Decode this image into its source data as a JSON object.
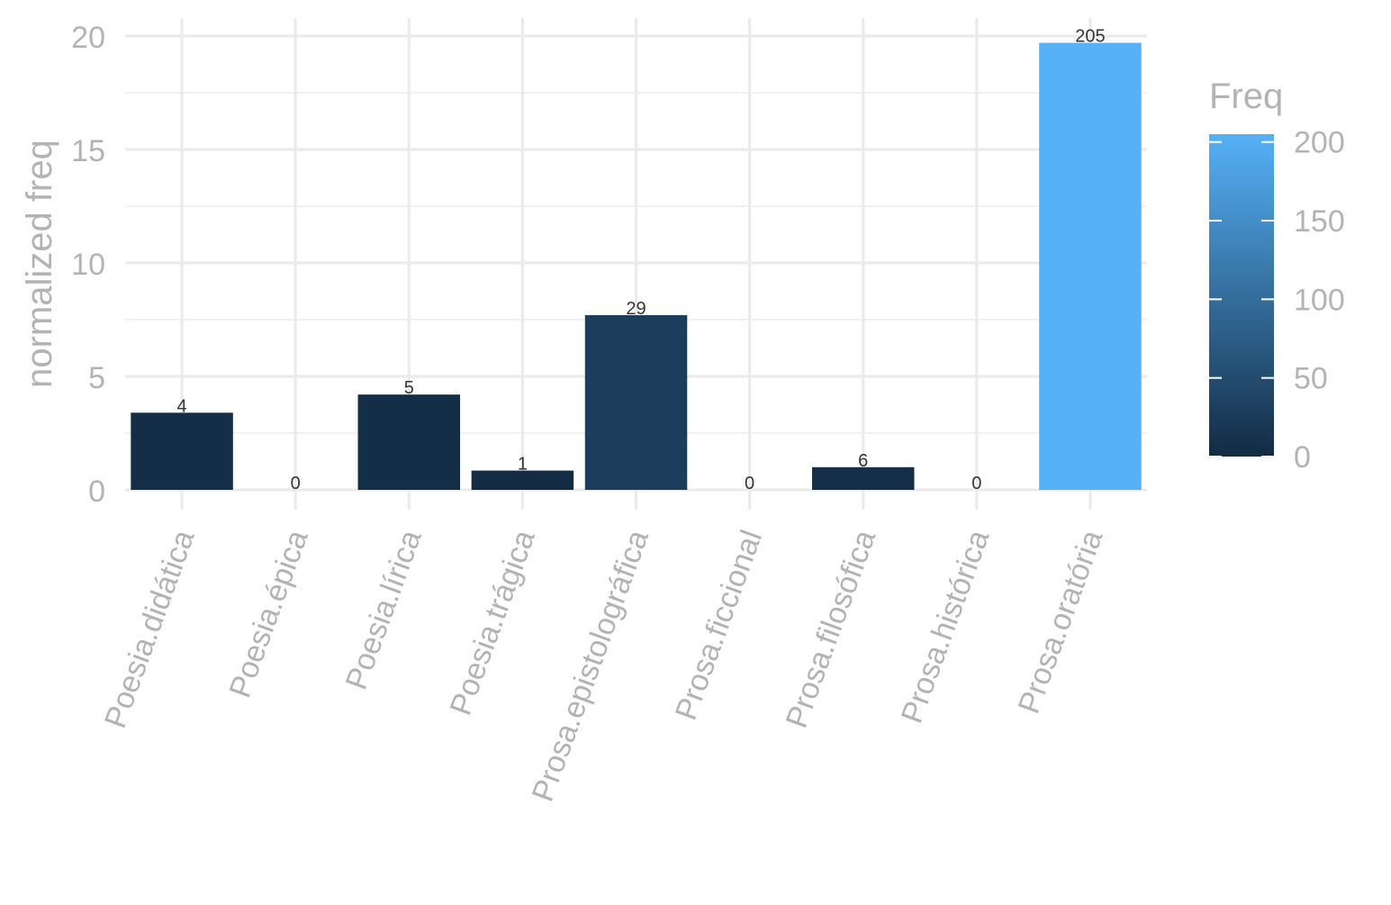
{
  "chart_data": {
    "type": "bar",
    "categories": [
      "Poesia.didática",
      "Poesia.épica",
      "Poesia.lírica",
      "Poesia.trágica",
      "Prosa.epistolográfica",
      "Prosa.ficcional",
      "Prosa.filosófica",
      "Prosa.histórica",
      "Prosa.oratória"
    ],
    "series": [
      {
        "values": [
          3.4,
          0,
          4.2,
          0.85,
          7.7,
          0,
          1.0,
          0,
          19.7
        ]
      }
    ],
    "freq": [
      4,
      0,
      5,
      1,
      29,
      0,
      6,
      0,
      205
    ],
    "data_labels": [
      "4",
      "0",
      "5",
      "1",
      "29",
      "0",
      "6",
      "0",
      "205"
    ],
    "title": "",
    "xlabel": "",
    "ylabel": "normalized freq",
    "ylim": [
      0,
      20
    ],
    "yticks": [
      0,
      5,
      10,
      15,
      20
    ],
    "ytick_labels": [
      "0",
      "5",
      "10",
      "15",
      "20"
    ],
    "grid": true,
    "legend": {
      "title": "Freq",
      "type": "colorbar",
      "position": "right",
      "range": [
        0,
        205
      ],
      "ticks": [
        0,
        50,
        100,
        150,
        200
      ],
      "tick_labels": [
        "0",
        "50",
        "100",
        "150",
        "200"
      ],
      "color_low": "#132b43",
      "color_high": "#56b1f7"
    },
    "colors": {
      "grid": "#ebebeb",
      "axis_text": "#b3b3b3",
      "data_label": "#333333"
    }
  }
}
